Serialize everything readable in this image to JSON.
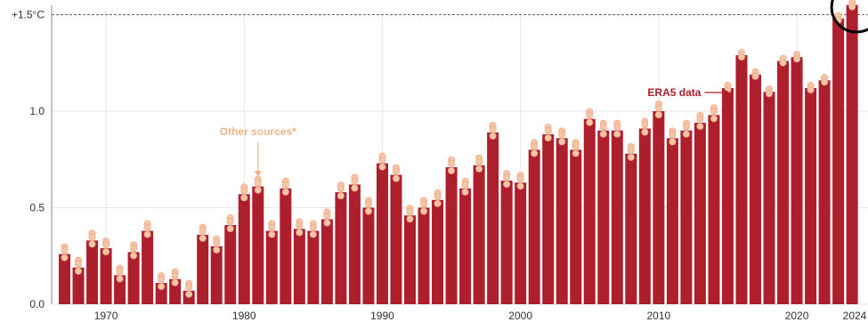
{
  "chart_data": {
    "type": "bar",
    "y_ticks": [
      {
        "value": 0.0,
        "label": "0.0"
      },
      {
        "value": 0.5,
        "label": "0.5"
      },
      {
        "value": 1.0,
        "label": "1.0"
      },
      {
        "value": 1.5,
        "label": "+1.5°C"
      }
    ],
    "x_ticks": [
      {
        "value": 1970,
        "label": "1970"
      },
      {
        "value": 1980,
        "label": "1980"
      },
      {
        "value": 1990,
        "label": "1990"
      },
      {
        "value": 2000,
        "label": "2000"
      },
      {
        "value": 2010,
        "label": "2010"
      },
      {
        "value": 2020,
        "label": "2020"
      },
      {
        "value": 2024,
        "label": "2024"
      }
    ],
    "ylim": [
      0,
      1.55
    ],
    "xlim": [
      1966,
      2024.5
    ],
    "grid": true,
    "years": [
      1967,
      1968,
      1969,
      1970,
      1971,
      1972,
      1973,
      1974,
      1975,
      1976,
      1977,
      1978,
      1979,
      1980,
      1981,
      1982,
      1983,
      1984,
      1985,
      1986,
      1987,
      1988,
      1989,
      1990,
      1991,
      1992,
      1993,
      1994,
      1995,
      1996,
      1997,
      1998,
      1999,
      2000,
      2001,
      2002,
      2003,
      2004,
      2005,
      2006,
      2007,
      2008,
      2009,
      2010,
      2011,
      2012,
      2013,
      2014,
      2015,
      2016,
      2017,
      2018,
      2019,
      2020,
      2021,
      2022,
      2023,
      2024
    ],
    "values": [
      0.26,
      0.19,
      0.33,
      0.29,
      0.15,
      0.27,
      0.38,
      0.11,
      0.13,
      0.07,
      0.36,
      0.3,
      0.41,
      0.57,
      0.61,
      0.38,
      0.6,
      0.39,
      0.38,
      0.44,
      0.58,
      0.62,
      0.5,
      0.73,
      0.67,
      0.46,
      0.5,
      0.54,
      0.71,
      0.6,
      0.72,
      0.89,
      0.64,
      0.63,
      0.8,
      0.88,
      0.86,
      0.8,
      0.96,
      0.9,
      0.9,
      0.78,
      0.91,
      1.0,
      0.86,
      0.9,
      0.94,
      0.98,
      1.12,
      1.29,
      1.19,
      1.1,
      1.26,
      1.28,
      1.12,
      1.16,
      1.48,
      1.55
    ],
    "threshold": {
      "value": 1.5,
      "label": "+1.5°C"
    },
    "annotations": {
      "other_sources": {
        "text": "Other sources*",
        "year": 1981
      },
      "era5": {
        "text": "ERA5 data",
        "year": 2015
      }
    },
    "colors": {
      "bar": "#ad1f2d",
      "dot": "#f5c6a5",
      "dot_stroke": "#f0a98b",
      "grid": "#e6e6e6",
      "axis": "#888888",
      "other_sources": "#f2b48c",
      "era5": "#ad1f2d",
      "highlight_circle": "#000000"
    }
  }
}
